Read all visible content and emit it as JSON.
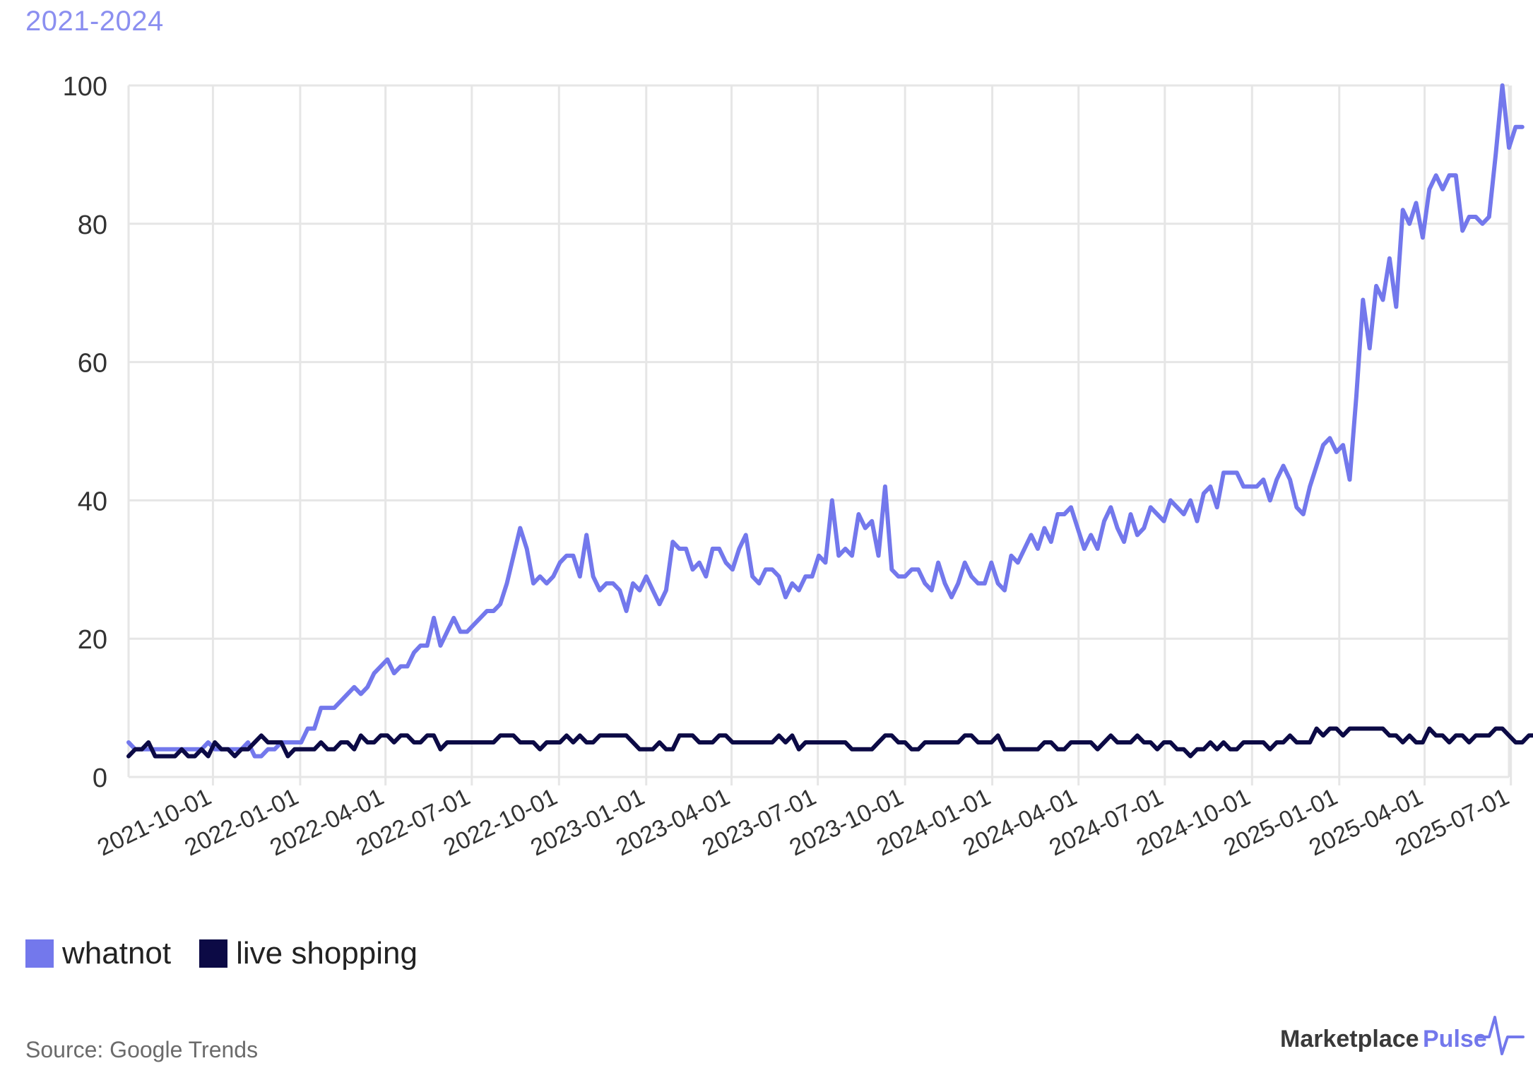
{
  "header": {
    "subtitle": "2021-2024"
  },
  "source": "Source: Google Trends",
  "brand": {
    "name_part1": "Marketplace",
    "name_part2": "Pulse"
  },
  "colors": {
    "whatnot": "#7378ec",
    "live_shopping": "#0c0a45",
    "grid": "#e6e6e6",
    "axis_text": "#333333"
  },
  "chart_data": {
    "type": "line",
    "title": "",
    "subtitle": "2021-2024",
    "xlabel": "",
    "ylabel": "",
    "x_type": "weekly dates",
    "x_start": "2021-07-04",
    "x_end": "2025-06-29",
    "ylim": [
      0,
      100
    ],
    "yticks": [
      0,
      20,
      40,
      60,
      80,
      100
    ],
    "xticks": [
      "2021-10-01",
      "2022-01-01",
      "2022-04-01",
      "2022-07-01",
      "2022-10-01",
      "2023-01-01",
      "2023-04-01",
      "2023-07-01",
      "2023-10-01",
      "2024-01-01",
      "2024-04-01",
      "2024-07-01",
      "2024-10-01",
      "2025-01-01",
      "2025-04-01",
      "2025-07-01"
    ],
    "grid": true,
    "legend_position": "bottom-left",
    "series": [
      {
        "name": "whatnot",
        "color": "#7378ec",
        "values": [
          5,
          4,
          4,
          4,
          4,
          4,
          4,
          4,
          4,
          4,
          4,
          4,
          5,
          4,
          4,
          4,
          4,
          4,
          5,
          3,
          3,
          4,
          4,
          5,
          5,
          5,
          5,
          7,
          7,
          10,
          10,
          10,
          11,
          12,
          13,
          12,
          13,
          15,
          16,
          17,
          15,
          16,
          16,
          18,
          19,
          19,
          23,
          19,
          21,
          23,
          21,
          21,
          22,
          23,
          24,
          24,
          25,
          28,
          32,
          36,
          33,
          28,
          29,
          28,
          29,
          31,
          32,
          32,
          29,
          35,
          29,
          27,
          28,
          28,
          27,
          24,
          28,
          27,
          29,
          27,
          25,
          27,
          34,
          33,
          33,
          30,
          31,
          29,
          33,
          33,
          31,
          30,
          33,
          35,
          29,
          28,
          30,
          30,
          29,
          26,
          28,
          27,
          29,
          29,
          32,
          31,
          40,
          32,
          33,
          32,
          38,
          36,
          37,
          32,
          42,
          30,
          29,
          29,
          30,
          30,
          28,
          27,
          31,
          28,
          26,
          28,
          31,
          29,
          28,
          28,
          31,
          28,
          27,
          32,
          31,
          33,
          35,
          33,
          36,
          34,
          38,
          38,
          39,
          36,
          33,
          35,
          33,
          37,
          39,
          36,
          34,
          38,
          35,
          36,
          39,
          38,
          37,
          40,
          39,
          38,
          40,
          37,
          41,
          42,
          39,
          44,
          44,
          44,
          42,
          42,
          42,
          43,
          40,
          43,
          45,
          43,
          39,
          38,
          42,
          45,
          48,
          49,
          47,
          48,
          43,
          55,
          69,
          62,
          71,
          69,
          75,
          68,
          82,
          80,
          83,
          78,
          85,
          87,
          85,
          87,
          87,
          79,
          81,
          81,
          80,
          81,
          90,
          100,
          91,
          94,
          94
        ]
      },
      {
        "name": "live shopping",
        "color": "#0c0a45",
        "values": [
          3,
          4,
          4,
          5,
          3,
          3,
          3,
          3,
          4,
          3,
          3,
          4,
          3,
          5,
          4,
          4,
          3,
          4,
          4,
          5,
          6,
          5,
          5,
          5,
          3,
          4,
          4,
          4,
          4,
          5,
          4,
          4,
          5,
          5,
          4,
          6,
          5,
          5,
          6,
          6,
          5,
          6,
          6,
          5,
          5,
          6,
          6,
          4,
          5,
          5,
          5,
          5,
          5,
          5,
          5,
          5,
          6,
          6,
          6,
          5,
          5,
          5,
          4,
          5,
          5,
          5,
          6,
          5,
          6,
          5,
          5,
          6,
          6,
          6,
          6,
          6,
          5,
          4,
          4,
          4,
          5,
          4,
          4,
          6,
          6,
          6,
          5,
          5,
          5,
          6,
          6,
          5,
          5,
          5,
          5,
          5,
          5,
          5,
          6,
          5,
          6,
          4,
          5,
          5,
          5,
          5,
          5,
          5,
          5,
          4,
          4,
          4,
          4,
          5,
          6,
          6,
          5,
          5,
          4,
          4,
          5,
          5,
          5,
          5,
          5,
          5,
          6,
          6,
          5,
          5,
          5,
          6,
          4,
          4,
          4,
          4,
          4,
          4,
          5,
          5,
          4,
          4,
          5,
          5,
          5,
          5,
          4,
          5,
          6,
          5,
          5,
          5,
          6,
          5,
          5,
          4,
          5,
          5,
          4,
          4,
          3,
          4,
          4,
          5,
          4,
          5,
          4,
          4,
          5,
          5,
          5,
          5,
          4,
          5,
          5,
          6,
          5,
          5,
          5,
          7,
          6,
          7,
          7,
          6,
          7,
          7,
          7,
          7,
          7,
          7,
          6,
          6,
          5,
          6,
          5,
          5,
          7,
          6,
          6,
          5,
          6,
          6,
          5,
          6,
          6,
          6,
          7,
          7,
          6,
          5,
          5,
          6,
          6,
          5,
          6
        ]
      }
    ]
  }
}
